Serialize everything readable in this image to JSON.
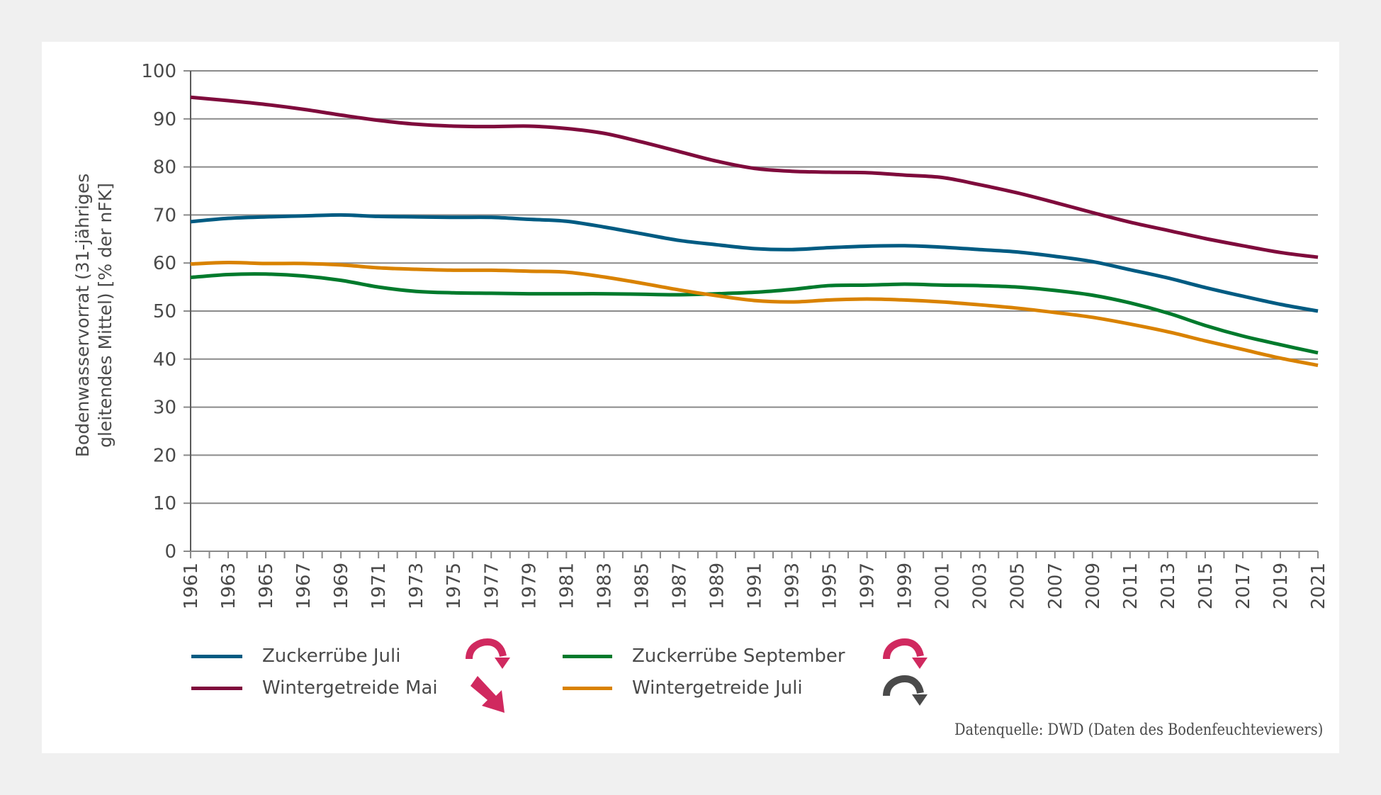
{
  "chart_data": {
    "type": "line",
    "title": "",
    "xlabel": "",
    "ylabel": "Bodenwasservorrat (31-jähriges gleitendes Mittel) [% der nFK]",
    "ylabel_lines": [
      "Bodenwasservorrat (31-jähriges",
      "gleitendes Mittel) [% der nFK]"
    ],
    "ylim": [
      0,
      100
    ],
    "xlim": [
      1961,
      2021
    ],
    "yticks": [
      0,
      10,
      20,
      30,
      40,
      50,
      60,
      70,
      80,
      90,
      100
    ],
    "xtick_labels": [
      "1961",
      "1963",
      "1965",
      "1967",
      "1969",
      "1971",
      "1973",
      "1975",
      "1977",
      "1979",
      "1981",
      "1983",
      "1985",
      "1987",
      "1989",
      "1991",
      "1993",
      "1995",
      "1997",
      "1999",
      "2001",
      "2003",
      "2005",
      "2007",
      "2009",
      "2011",
      "2013",
      "2015",
      "2017",
      "2019",
      "2021"
    ],
    "grid": true,
    "legend_position": "bottom",
    "x": [
      1961,
      1963,
      1965,
      1967,
      1969,
      1971,
      1973,
      1975,
      1977,
      1979,
      1981,
      1983,
      1985,
      1987,
      1989,
      1991,
      1993,
      1995,
      1997,
      1999,
      2001,
      2003,
      2005,
      2007,
      2009,
      2011,
      2013,
      2015,
      2017,
      2019,
      2021
    ],
    "series": [
      {
        "name": "Zuckerrübe Juli",
        "color": "#005b82",
        "trend": "fall",
        "trend_color": "#d0295f",
        "values": [
          68.6,
          69.3,
          69.6,
          69.8,
          70.0,
          69.7,
          69.6,
          69.5,
          69.5,
          69.1,
          68.7,
          67.5,
          66.1,
          64.7,
          63.8,
          63.0,
          62.8,
          63.2,
          63.5,
          63.6,
          63.3,
          62.8,
          62.3,
          61.4,
          60.3,
          58.6,
          56.9,
          54.9,
          53.1,
          51.4,
          50.0
        ]
      },
      {
        "name": "Zuckerrübe September",
        "color": "#007a2c",
        "trend": "fall",
        "trend_color": "#d0295f",
        "values": [
          57.0,
          57.6,
          57.7,
          57.3,
          56.4,
          55.0,
          54.1,
          53.8,
          53.7,
          53.6,
          53.6,
          53.6,
          53.5,
          53.4,
          53.6,
          53.9,
          54.5,
          55.3,
          55.4,
          55.6,
          55.4,
          55.3,
          55.0,
          54.3,
          53.3,
          51.7,
          49.6,
          47.0,
          44.8,
          43.0,
          41.3
        ]
      },
      {
        "name": "Wintergetreide Mai",
        "color": "#7f0b3c",
        "trend": "significant-fall",
        "trend_color": "#d0295f",
        "values": [
          94.5,
          93.8,
          93.0,
          92.0,
          90.8,
          89.7,
          88.9,
          88.5,
          88.4,
          88.5,
          88.0,
          87.0,
          85.2,
          83.2,
          81.2,
          79.7,
          79.1,
          78.9,
          78.8,
          78.3,
          77.8,
          76.3,
          74.6,
          72.6,
          70.5,
          68.5,
          66.8,
          65.1,
          63.6,
          62.2,
          61.2
        ]
      },
      {
        "name": "Wintergetreide Juli",
        "color": "#d98200",
        "trend": "no-trend",
        "trend_color": "#4a4a4a",
        "values": [
          59.8,
          60.1,
          59.9,
          59.9,
          59.6,
          59.0,
          58.7,
          58.5,
          58.5,
          58.3,
          58.1,
          57.1,
          55.8,
          54.4,
          53.2,
          52.2,
          51.9,
          52.3,
          52.5,
          52.3,
          51.9,
          51.3,
          50.6,
          49.7,
          48.7,
          47.3,
          45.7,
          43.8,
          42.0,
          40.2,
          38.7
        ]
      }
    ]
  },
  "legend": {
    "items": [
      {
        "label": "Zuckerrübe Juli",
        "icon": "curved-arrow-down-icon"
      },
      {
        "label": "Wintergetreide Mai",
        "icon": "diagonal-arrow-down-icon"
      },
      {
        "label": "Zuckerrübe September",
        "icon": "curved-arrow-down-icon"
      },
      {
        "label": "Wintergetreide Juli",
        "icon": "curved-arrow-down-icon"
      }
    ]
  },
  "source": "Datenquelle: DWD (Daten des Bodenfeuchteviewers)"
}
